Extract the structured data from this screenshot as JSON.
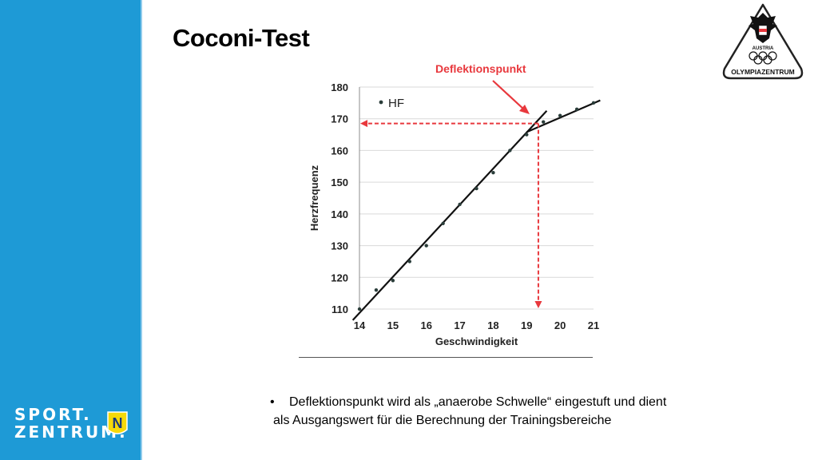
{
  "slide": {
    "title": "Coconi-Test",
    "bullet_line1": "Deflektionspunkt wird als „anaerobe Schwelle“ eingestuft und dient",
    "bullet_line2": "als Ausgangswert für die Berechnung der Trainingsbereiche",
    "bullet_marker": "•"
  },
  "logos": {
    "sport_line1": "SPORT.",
    "sport_line2": "ZENTRUM.",
    "sport_badge": "N",
    "olympia_country": "AUSTRIA",
    "olympia_name": "OLYMPIAZENTRUM"
  },
  "colors": {
    "sidebar": "#1e9ad6",
    "annotation": "#e8383d",
    "badge": "#f5d90a"
  },
  "chart_data": {
    "type": "scatter",
    "xlabel": "Geschwindigkeit",
    "ylabel": "Herzfrequenz",
    "xlim": [
      14,
      21
    ],
    "ylim": [
      110,
      180
    ],
    "xticks": [
      14,
      15,
      16,
      17,
      18,
      19,
      20,
      21
    ],
    "yticks": [
      110,
      120,
      130,
      140,
      150,
      160,
      170,
      180
    ],
    "legend": "top-left",
    "series": [
      {
        "name": "HF",
        "x": [
          14,
          14.5,
          15,
          15.5,
          16,
          16.5,
          17,
          17.5,
          18,
          18.5,
          19,
          19.5,
          20,
          20.5,
          21
        ],
        "y": [
          110,
          116,
          119,
          125,
          130,
          137,
          143,
          148,
          153,
          160,
          165,
          169,
          171,
          173,
          175
        ]
      }
    ],
    "fit_lines": [
      {
        "from": [
          13.8,
          106.5
        ],
        "to": [
          19.6,
          172.5
        ]
      },
      {
        "from": [
          19.0,
          165.8
        ],
        "to": [
          21.2,
          175.8
        ]
      }
    ],
    "deflection_point": {
      "x": 19.35,
      "y": 168.5
    },
    "annotation": "Deflektionspunkt"
  }
}
